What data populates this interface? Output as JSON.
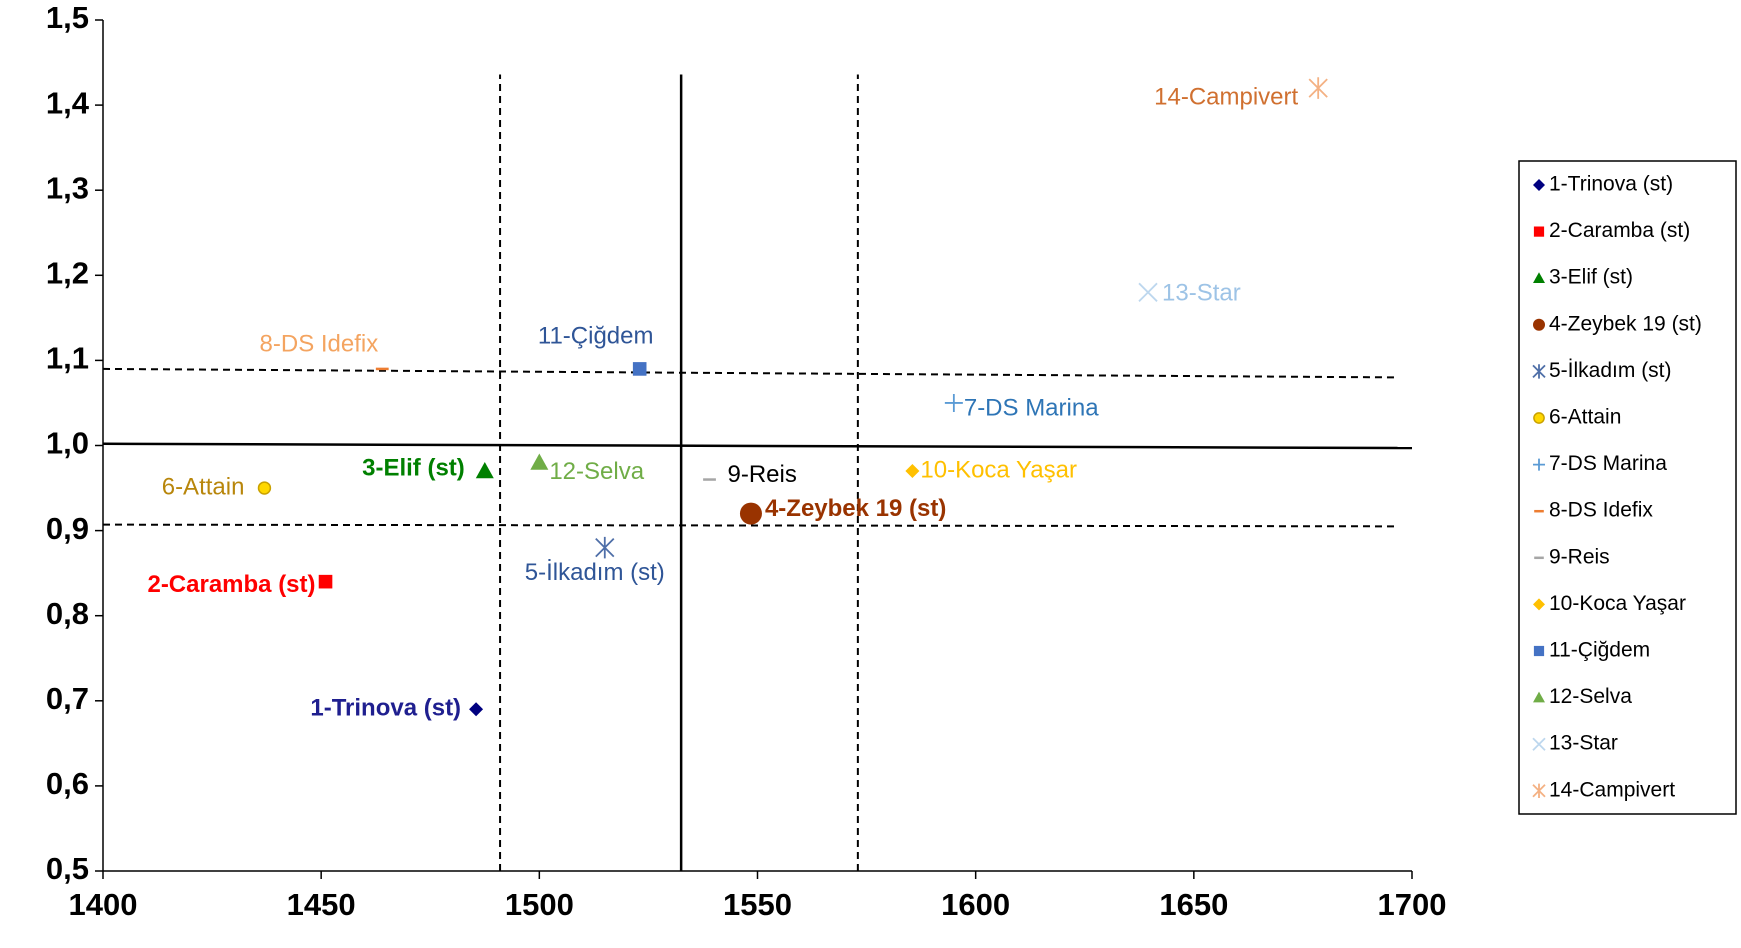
{
  "chart_data": {
    "type": "scatter",
    "xlim": [
      1400,
      1700
    ],
    "ylim": [
      0.5,
      1.5
    ],
    "xticks": [
      1400,
      1450,
      1500,
      1550,
      1600,
      1650,
      1700
    ],
    "yticks": [
      {
        "value": 0.5,
        "label": "0,5"
      },
      {
        "value": 0.6,
        "label": "0,6"
      },
      {
        "value": 0.7,
        "label": "0,7"
      },
      {
        "value": 0.8,
        "label": "0,8"
      },
      {
        "value": 0.9,
        "label": "0,9"
      },
      {
        "value": 1.0,
        "label": "1,0"
      },
      {
        "value": 1.1,
        "label": "1,1"
      },
      {
        "value": 1.2,
        "label": "1,2"
      },
      {
        "value": 1.3,
        "label": "1,3"
      },
      {
        "value": 1.4,
        "label": "1,4"
      },
      {
        "value": 1.5,
        "label": "1,5"
      }
    ],
    "legend": "right",
    "reference_lines": [
      {
        "x": [
          1532.5,
          1532.5
        ],
        "y": [
          0.5,
          1.436
        ],
        "dashed": false
      },
      {
        "x": [
          1491,
          1491
        ],
        "y": [
          0.5,
          1.436
        ],
        "dashed": true
      },
      {
        "x": [
          1573,
          1573
        ],
        "y": [
          0.5,
          1.436
        ],
        "dashed": true
      },
      {
        "x": [
          1400,
          1700
        ],
        "y": [
          1.002,
          0.997
        ],
        "dashed": false
      },
      {
        "x": [
          1400,
          1697
        ],
        "y": [
          1.09,
          1.08
        ],
        "dashed": true
      },
      {
        "x": [
          1400,
          1697
        ],
        "y": [
          0.907,
          0.905
        ],
        "dashed": true
      }
    ],
    "series": [
      {
        "name": "1-Trinova (st)",
        "color": "#000080",
        "label_color": "#1f1f8f",
        "label_bold": true,
        "marker": "diamond",
        "x": [
          1485.5
        ],
        "values": [
          0.69
        ]
      },
      {
        "name": "2-Caramba (st)",
        "color": "#ff0000",
        "label_color": "#ff0000",
        "label_bold": true,
        "marker": "square",
        "x": [
          1451
        ],
        "values": [
          0.84
        ]
      },
      {
        "name": "3-Elif (st)",
        "color": "#008000",
        "label_color": "#008000",
        "label_bold": true,
        "marker": "triangle",
        "x": [
          1487.5
        ],
        "values": [
          0.97
        ]
      },
      {
        "name": "4-Zeybek 19 (st)",
        "color": "#993300",
        "label_color": "#993300",
        "label_bold": true,
        "marker": "circle",
        "x": [
          1548.5
        ],
        "values": [
          0.92
        ]
      },
      {
        "name": "5-İlkadım (st)",
        "color": "#4f6fa8",
        "label_color": "#2f5597",
        "label_bold": false,
        "marker": "asterisk",
        "x": [
          1515
        ],
        "values": [
          0.88
        ]
      },
      {
        "name": "6-Attain",
        "color": "#c9a100",
        "label_color": "#b8860b",
        "label_bold": false,
        "marker": "dot",
        "x": [
          1437
        ],
        "values": [
          0.95
        ]
      },
      {
        "name": "7-DS Marina",
        "color": "#5b9bd5",
        "label_color": "#2e75b6",
        "label_bold": false,
        "marker": "plus",
        "x": [
          1595
        ],
        "values": [
          1.05
        ]
      },
      {
        "name": "8-DS Idefix",
        "color": "#ed7d31",
        "label_color": "#f4a460",
        "label_bold": false,
        "marker": "dash",
        "x": [
          1464
        ],
        "values": [
          1.09
        ]
      },
      {
        "name": "9-Reis",
        "color": "#a6a6a6",
        "label_color": "#000000",
        "label_bold": false,
        "marker": "dash",
        "x": [
          1539
        ],
        "values": [
          0.96
        ]
      },
      {
        "name": "10-Koca Yaşar",
        "color": "#ffc000",
        "label_color": "#ffc000",
        "label_bold": false,
        "marker": "diamond",
        "x": [
          1585.5
        ],
        "values": [
          0.97
        ]
      },
      {
        "name": "11-Çiğdem",
        "color": "#4472c4",
        "label_color": "#2f5597",
        "label_bold": false,
        "marker": "square",
        "x": [
          1523
        ],
        "values": [
          1.09
        ]
      },
      {
        "name": "12-Selva",
        "color": "#70ad47",
        "label_color": "#70ad47",
        "label_bold": false,
        "marker": "triangle",
        "x": [
          1500
        ],
        "values": [
          0.98
        ]
      },
      {
        "name": "13-Star",
        "color": "#bdd7ee",
        "label_color": "#9dc3e6",
        "label_bold": false,
        "marker": "x",
        "x": [
          1639.5
        ],
        "values": [
          1.18
        ]
      },
      {
        "name": "14-Campivert",
        "color": "#f4b183",
        "label_color": "#d07030",
        "label_bold": false,
        "marker": "asterisk",
        "x": [
          1678.5
        ],
        "values": [
          1.42
        ]
      }
    ]
  }
}
